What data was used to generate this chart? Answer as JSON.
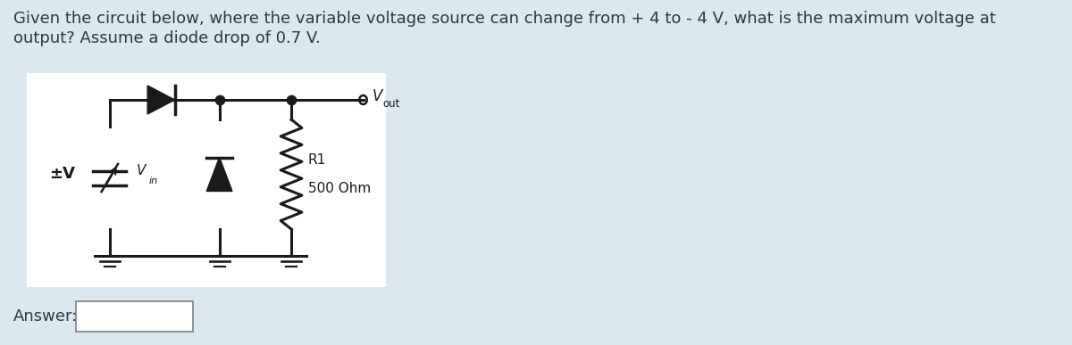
{
  "bg_color": "#dbe8ed",
  "circuit_bg": "#ffffff",
  "text_color": "#2a3a42",
  "question_text_line1": "Given the circuit below, where the variable voltage source can change from + 4 to - 4 V, what is the maximum voltage at",
  "question_text_line2": "output? Assume a diode drop of 0.7 V.",
  "answer_label": "Answer:",
  "vout_label": "V",
  "vout_sub": "out",
  "vin_label": "V",
  "vin_sub": "in",
  "pmv_label": "±V",
  "r1_label": "R1",
  "r1_value": "500 Ohm",
  "font_size_question": 13.0,
  "font_size_circuit": 11.0
}
